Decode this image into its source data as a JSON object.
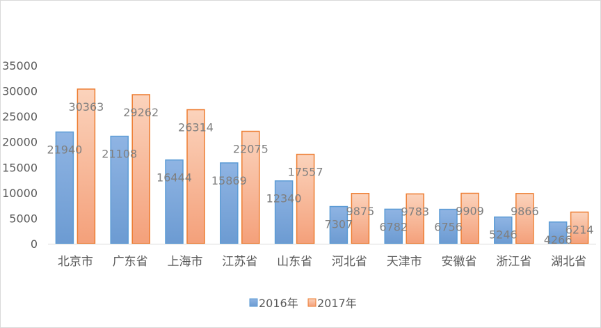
{
  "chart_data": {
    "type": "bar",
    "categories": [
      "北京市",
      "广东省",
      "上海市",
      "江苏省",
      "山东省",
      "河北省",
      "天津市",
      "安徽省",
      "浙江省",
      "湖北省"
    ],
    "series": [
      {
        "name": "2016年",
        "values": [
          21940,
          21108,
          16444,
          15869,
          12340,
          7307,
          6782,
          6756,
          5246,
          4266
        ],
        "color": "#9dc3e6",
        "gradient_top": "#8fb4e3",
        "gradient_bottom": "#6c9bd2",
        "stroke": "#5b9bd5"
      },
      {
        "name": "2017年",
        "values": [
          30363,
          29262,
          26314,
          22075,
          17557,
          9875,
          9783,
          9909,
          9866,
          6214
        ],
        "color": "#f4b183",
        "gradient_top": "#fbd3bc",
        "gradient_bottom": "#f4a07a",
        "stroke": "#ed7d31"
      }
    ],
    "yticks": [
      "0",
      "5000",
      "10000",
      "15000",
      "20000",
      "25000",
      "30000",
      "35000"
    ],
    "ylim": [
      0,
      35000
    ],
    "grid": false,
    "legend_position": "bottom"
  }
}
